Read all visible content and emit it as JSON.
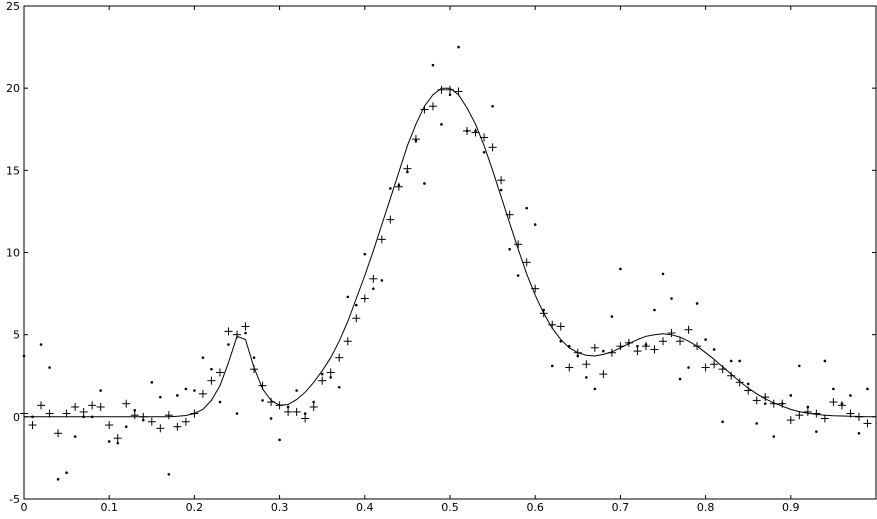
{
  "chart_data": {
    "type": "scatter",
    "title": "",
    "xlabel": "",
    "ylabel": "",
    "xlim": [
      0,
      1
    ],
    "ylim": [
      -5,
      25
    ],
    "xticks": [
      "0",
      "0.1",
      "0.2",
      "0.3",
      "0.4",
      "0.5",
      "0.6",
      "0.7",
      "0.8",
      "0.9"
    ],
    "yticks": [
      "-5",
      "0",
      "5",
      "10",
      "15",
      "20",
      "25"
    ],
    "grid": false,
    "legend": "none",
    "colors": {
      "axis": "#000000",
      "curve": "#000000",
      "markers": "#000000"
    },
    "series": [
      {
        "style": "line",
        "x": [
          0,
          0.02,
          0.04,
          0.06,
          0.08,
          0.1,
          0.12,
          0.14,
          0.15,
          0.16,
          0.17,
          0.18,
          0.19,
          0.2,
          0.21,
          0.22,
          0.23,
          0.24,
          0.25,
          0.26,
          0.27,
          0.28,
          0.29,
          0.3,
          0.31,
          0.32,
          0.33,
          0.34,
          0.35,
          0.36,
          0.37,
          0.38,
          0.39,
          0.4,
          0.41,
          0.42,
          0.43,
          0.44,
          0.45,
          0.46,
          0.47,
          0.48,
          0.49,
          0.5,
          0.51,
          0.52,
          0.53,
          0.54,
          0.55,
          0.56,
          0.57,
          0.58,
          0.59,
          0.6,
          0.61,
          0.62,
          0.63,
          0.64,
          0.65,
          0.66,
          0.67,
          0.68,
          0.69,
          0.7,
          0.71,
          0.72,
          0.73,
          0.74,
          0.75,
          0.76,
          0.77,
          0.78,
          0.79,
          0.8,
          0.81,
          0.82,
          0.83,
          0.84,
          0.85,
          0.86,
          0.87,
          0.88,
          0.89,
          0.9,
          0.91,
          0.92,
          0.93,
          0.94,
          0.95,
          0.96,
          0.97,
          0.98,
          0.99,
          1.0
        ],
        "y": [
          0,
          0,
          0,
          0,
          0,
          0,
          0,
          0,
          0,
          0,
          0.01,
          0.03,
          0.08,
          0.2,
          0.45,
          1.0,
          1.9,
          3.3,
          4.9,
          4.7,
          3.0,
          1.7,
          1.0,
          0.7,
          0.75,
          1.05,
          1.5,
          2.1,
          2.8,
          3.6,
          4.6,
          5.8,
          7.2,
          8.6,
          10.1,
          11.7,
          13.3,
          14.9,
          16.5,
          17.8,
          18.9,
          19.6,
          20.0,
          20.0,
          19.6,
          18.8,
          17.8,
          16.5,
          15.0,
          13.4,
          11.8,
          10.2,
          8.7,
          7.4,
          6.3,
          5.4,
          4.7,
          4.2,
          3.9,
          3.75,
          3.7,
          3.8,
          3.95,
          4.2,
          4.45,
          4.7,
          4.9,
          5.0,
          5.05,
          5.0,
          4.85,
          4.6,
          4.3,
          3.9,
          3.5,
          3.05,
          2.6,
          2.15,
          1.75,
          1.4,
          1.1,
          0.85,
          0.65,
          0.45,
          0.32,
          0.22,
          0.15,
          0.1,
          0.07,
          0.05,
          0.03,
          0.02,
          0.01,
          0.0
        ]
      },
      {
        "style": "plus",
        "x": [
          0.0,
          0.01,
          0.02,
          0.03,
          0.04,
          0.05,
          0.06,
          0.07,
          0.08,
          0.09,
          0.1,
          0.11,
          0.12,
          0.13,
          0.14,
          0.15,
          0.16,
          0.17,
          0.18,
          0.19,
          0.2,
          0.21,
          0.22,
          0.23,
          0.24,
          0.25,
          0.26,
          0.27,
          0.28,
          0.29,
          0.3,
          0.31,
          0.32,
          0.33,
          0.34,
          0.35,
          0.36,
          0.37,
          0.38,
          0.39,
          0.4,
          0.41,
          0.42,
          0.43,
          0.44,
          0.45,
          0.46,
          0.47,
          0.48,
          0.49,
          0.5,
          0.51,
          0.52,
          0.53,
          0.54,
          0.55,
          0.56,
          0.57,
          0.58,
          0.59,
          0.6,
          0.61,
          0.62,
          0.63,
          0.64,
          0.65,
          0.66,
          0.67,
          0.68,
          0.69,
          0.7,
          0.71,
          0.72,
          0.73,
          0.74,
          0.75,
          0.76,
          0.77,
          0.78,
          0.79,
          0.8,
          0.81,
          0.82,
          0.83,
          0.84,
          0.85,
          0.86,
          0.87,
          0.88,
          0.89,
          0.9,
          0.91,
          0.92,
          0.93,
          0.94,
          0.95,
          0.96,
          0.97,
          0.98,
          0.99
        ],
        "y": [
          0.2,
          -0.5,
          0.7,
          0.2,
          -1.0,
          0.2,
          0.6,
          0.3,
          0.7,
          0.6,
          -0.5,
          -1.3,
          0.8,
          0.1,
          0.0,
          -0.3,
          -0.7,
          0.1,
          -0.6,
          -0.3,
          0.2,
          1.4,
          2.2,
          2.7,
          5.2,
          5.0,
          5.5,
          2.9,
          1.9,
          0.9,
          0.7,
          0.3,
          0.3,
          -0.1,
          0.6,
          2.2,
          2.7,
          3.6,
          4.6,
          6.0,
          7.2,
          8.4,
          10.8,
          12.0,
          14.0,
          15.1,
          16.9,
          18.7,
          18.9,
          19.9,
          19.9,
          19.8,
          17.4,
          17.3,
          17.0,
          16.4,
          14.4,
          12.3,
          10.5,
          9.4,
          7.8,
          6.3,
          5.6,
          5.5,
          3.0,
          3.9,
          3.2,
          4.2,
          2.6,
          3.9,
          4.3,
          4.5,
          4.0,
          4.3,
          4.1,
          4.6,
          5.1,
          4.6,
          5.3,
          4.3,
          3.0,
          3.2,
          2.9,
          2.5,
          2.1,
          1.6,
          1.0,
          1.2,
          0.8,
          0.8,
          -0.2,
          0.1,
          0.3,
          0.2,
          -0.1,
          0.9,
          0.7,
          0.2,
          0.0,
          -0.4
        ]
      },
      {
        "style": "dot",
        "x": [
          0.0,
          0.01,
          0.02,
          0.03,
          0.04,
          0.05,
          0.06,
          0.07,
          0.08,
          0.09,
          0.1,
          0.11,
          0.12,
          0.13,
          0.14,
          0.15,
          0.16,
          0.17,
          0.18,
          0.19,
          0.2,
          0.21,
          0.22,
          0.23,
          0.24,
          0.25,
          0.26,
          0.27,
          0.28,
          0.29,
          0.3,
          0.31,
          0.32,
          0.33,
          0.34,
          0.35,
          0.36,
          0.37,
          0.38,
          0.39,
          0.4,
          0.41,
          0.42,
          0.43,
          0.44,
          0.45,
          0.46,
          0.47,
          0.48,
          0.49,
          0.5,
          0.51,
          0.52,
          0.53,
          0.54,
          0.55,
          0.56,
          0.57,
          0.58,
          0.59,
          0.6,
          0.61,
          0.62,
          0.63,
          0.64,
          0.65,
          0.66,
          0.67,
          0.68,
          0.69,
          0.7,
          0.71,
          0.72,
          0.73,
          0.74,
          0.75,
          0.76,
          0.77,
          0.78,
          0.79,
          0.8,
          0.81,
          0.82,
          0.83,
          0.84,
          0.85,
          0.86,
          0.87,
          0.88,
          0.89,
          0.9,
          0.91,
          0.92,
          0.93,
          0.94,
          0.95,
          0.96,
          0.97,
          0.98,
          0.99
        ],
        "y": [
          3.7,
          0.0,
          4.4,
          3.0,
          -3.8,
          -3.4,
          -1.2,
          0.0,
          0.0,
          1.6,
          -1.5,
          -1.6,
          -0.6,
          0.4,
          -0.2,
          2.1,
          1.2,
          -3.5,
          1.3,
          1.7,
          1.6,
          3.6,
          2.9,
          0.9,
          4.4,
          0.2,
          5.1,
          3.6,
          1.0,
          -0.1,
          -1.4,
          0.6,
          1.6,
          0.2,
          0.9,
          2.6,
          2.4,
          1.8,
          7.3,
          6.8,
          9.9,
          7.8,
          8.3,
          13.9,
          14.1,
          14.9,
          16.8,
          14.2,
          21.4,
          17.8,
          19.6,
          22.5,
          17.4,
          17.4,
          16.1,
          18.9,
          13.8,
          10.2,
          8.6,
          12.7,
          11.7,
          6.5,
          3.1,
          4.6,
          4.3,
          3.7,
          2.4,
          1.7,
          4.0,
          6.1,
          9.0,
          4.5,
          4.3,
          4.4,
          6.5,
          8.7,
          7.2,
          2.3,
          3.0,
          6.9,
          4.7,
          4.1,
          -0.3,
          3.4,
          3.4,
          2.0,
          -0.4,
          0.8,
          -1.2,
          0.8,
          1.3,
          3.1,
          0.6,
          -0.9,
          3.4,
          1.7,
          0.8,
          1.3,
          -1.0,
          1.7
        ]
      }
    ]
  }
}
